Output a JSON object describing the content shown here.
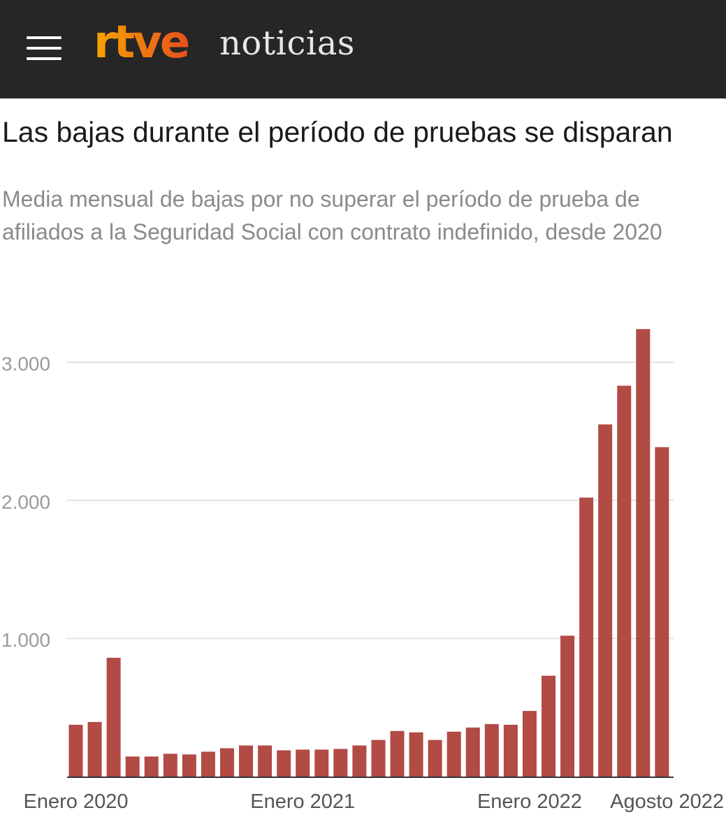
{
  "header": {
    "brand_logo_text": "rtve",
    "section": "noticias",
    "menu_icon": "hamburger-menu-icon",
    "colors": {
      "background": "#262626",
      "logo_start": "#f7a600",
      "logo_end": "#e8501e"
    }
  },
  "article": {
    "title": "Las bajas durante el período de pruebas se disparan",
    "subtitle": "Media mensual de bajas por no superar el período de prueba de afiliados a la Seguridad Social con contrato indefinido, desde 2020"
  },
  "chart_data": {
    "type": "bar",
    "title": "Las bajas durante el período de pruebas se disparan",
    "subtitle": "Media mensual de bajas por no superar el período de prueba de afiliados a la Seguridad Social con contrato indefinido, desde 2020",
    "xlabel": "",
    "ylabel": "",
    "ylim": [
      0,
      3300
    ],
    "yticks": [
      1000,
      2000,
      3000
    ],
    "ytick_labels": [
      "1.000",
      "2.000",
      "3.000"
    ],
    "grid": true,
    "bar_color": "#b24a45",
    "categories": [
      "2020-01",
      "2020-02",
      "2020-03",
      "2020-04",
      "2020-05",
      "2020-06",
      "2020-07",
      "2020-08",
      "2020-09",
      "2020-10",
      "2020-11",
      "2020-12",
      "2021-01",
      "2021-02",
      "2021-03",
      "2021-04",
      "2021-05",
      "2021-06",
      "2021-07",
      "2021-08",
      "2021-09",
      "2021-10",
      "2021-11",
      "2021-12",
      "2022-01",
      "2022-02",
      "2022-03",
      "2022-04",
      "2022-05",
      "2022-06",
      "2022-07",
      "2022-08"
    ],
    "x_tick_labels": [
      {
        "index": 0,
        "label": "Enero 2020"
      },
      {
        "index": 12,
        "label": "Enero 2021"
      },
      {
        "index": 24,
        "label": "Enero 2022"
      },
      {
        "index": 31,
        "label": "Agosto 2022"
      }
    ],
    "values": [
      375,
      395,
      860,
      145,
      145,
      165,
      160,
      180,
      205,
      225,
      225,
      190,
      195,
      195,
      200,
      225,
      265,
      330,
      320,
      265,
      325,
      355,
      380,
      375,
      475,
      730,
      1020,
      2020,
      2550,
      2830,
      3240,
      2385
    ]
  }
}
